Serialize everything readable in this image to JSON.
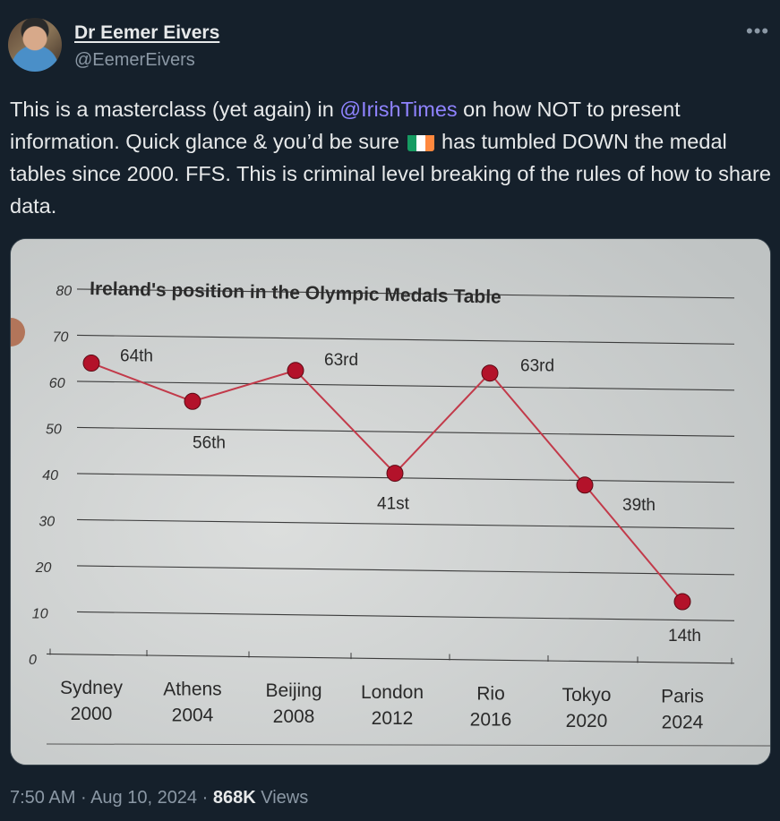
{
  "author": {
    "display_name": "Dr Eemer Eivers",
    "handle": "@EemerEivers",
    "avatar_icon": "profile-photo"
  },
  "menu_icon": "more-options-icon",
  "tweet": {
    "text_before_mention": "This is a masterclass (yet again) in ",
    "mention": "@IrishTimes",
    "text_after_mention": " on how NOT to present information. Quick glance & you’d be sure ",
    "flag_icon": "ireland-flag-emoji",
    "text_after_flag": " has tumbled DOWN the medal tables since 2000. FFS. This is criminal level breaking of the rules of how to share data."
  },
  "meta": {
    "time": "7:50 AM",
    "date": "Aug 10, 2024",
    "views_count": "868K",
    "views_label": "Views"
  },
  "colors": {
    "background": "#15202b",
    "mention": "#8f83ff",
    "line": "#c23a4a",
    "point": "#b3122a"
  },
  "chart_data": {
    "type": "line",
    "title": "Ireland's position in the Olympic Medals Table",
    "xlabel": "",
    "ylabel": "",
    "ylim": [
      0,
      80
    ],
    "yticks": [
      "0",
      "10",
      "20",
      "30",
      "40",
      "50",
      "60",
      "70",
      "80"
    ],
    "categories": [
      {
        "name": "Sydney",
        "year": "2000"
      },
      {
        "name": "Athens",
        "year": "2004"
      },
      {
        "name": "Beijing",
        "year": "2008"
      },
      {
        "name": "London",
        "year": "2012"
      },
      {
        "name": "Rio",
        "year": "2016"
      },
      {
        "name": "Tokyo",
        "year": "2020"
      },
      {
        "name": "Paris",
        "year": "2024"
      }
    ],
    "values": [
      64,
      56,
      63,
      41,
      63,
      39,
      14
    ],
    "labels": [
      "64th",
      "56th",
      "63rd",
      "41st",
      "63rd",
      "39th",
      "14th"
    ],
    "grid": true
  }
}
